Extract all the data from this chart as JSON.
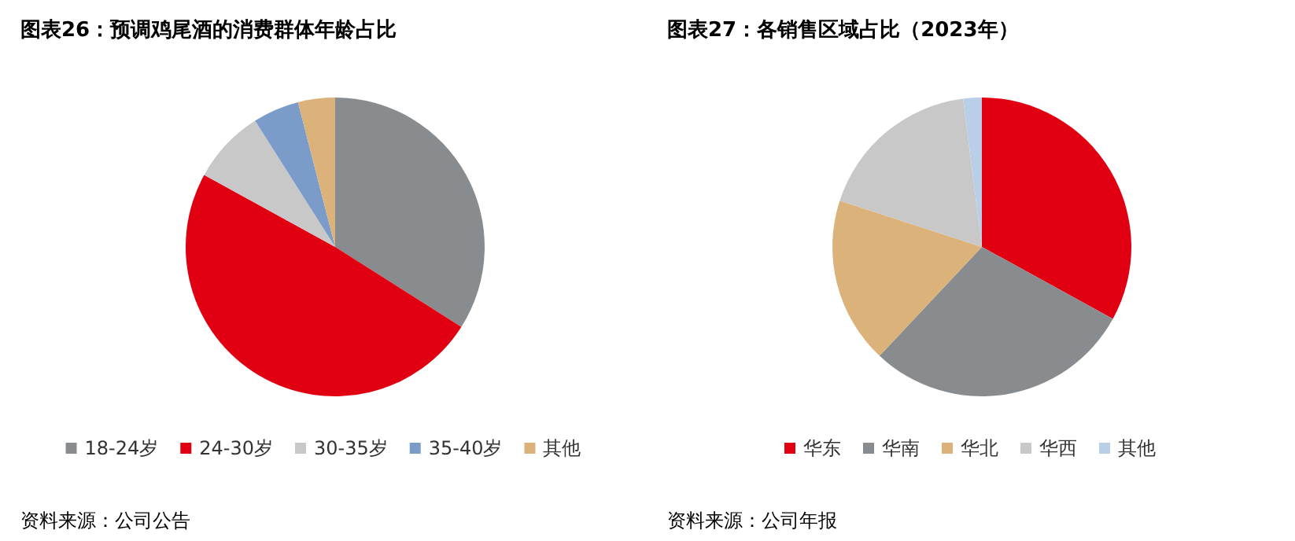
{
  "chart_data": [
    {
      "type": "pie",
      "title": "图表26：预调鸡尾酒的消费群体年龄占比",
      "categories": [
        "18-24岁",
        "24-30岁",
        "30-35岁",
        "35-40岁",
        "其他"
      ],
      "values": [
        34,
        49,
        8,
        5,
        4
      ],
      "colors": [
        "#898c8e",
        "#e00012",
        "#c8c8c8",
        "#7b9cc9",
        "#dcb27b"
      ],
      "legend": "bottom",
      "annotations": [
        "资料来源：公司公告"
      ]
    },
    {
      "type": "pie",
      "title": "图表27：各销售区域占比（2023年）",
      "categories": [
        "华东",
        "华南",
        "华北",
        "华西",
        "其他"
      ],
      "values": [
        33,
        29,
        18,
        18,
        2
      ],
      "colors": [
        "#e00012",
        "#898c8e",
        "#dcb27b",
        "#c8c8c8",
        "#b9cfe8"
      ],
      "legend": "bottom",
      "annotations": [
        "资料来源：公司年报"
      ]
    }
  ]
}
